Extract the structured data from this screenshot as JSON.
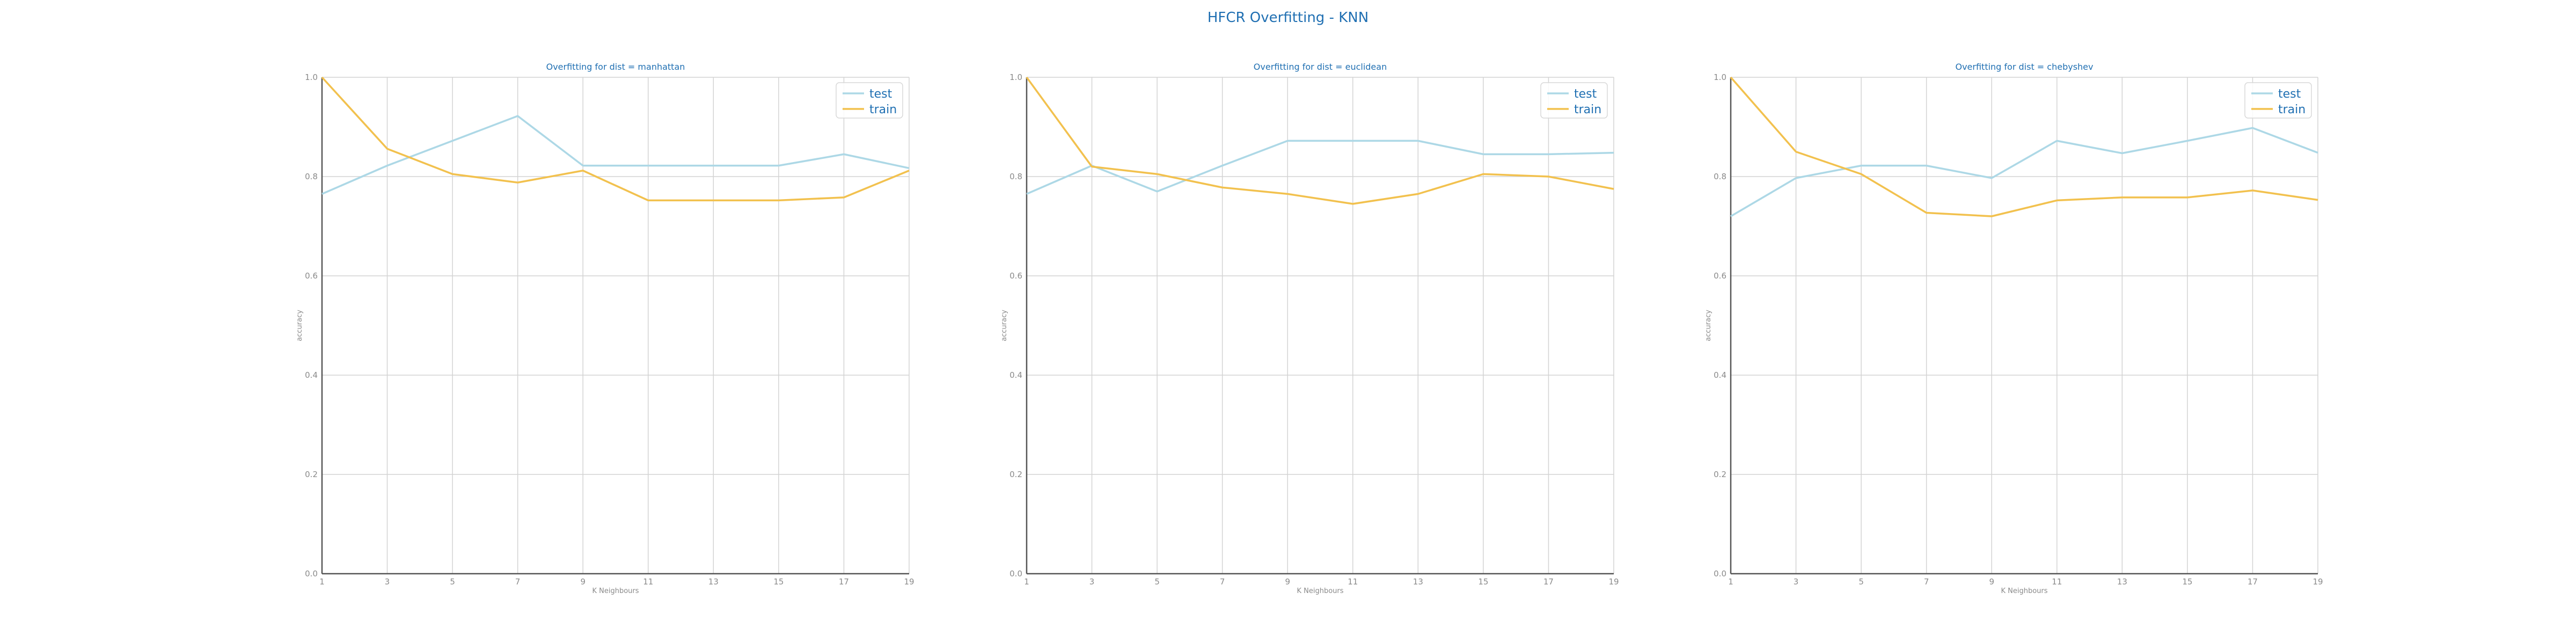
{
  "suptitle": "HFCR Overfitting - KNN",
  "colors": {
    "test": "#add8e6",
    "train": "#f2c14e",
    "title": "#1f6fb2",
    "grid": "#d3d3d3",
    "axis": "#555555",
    "tick": "#8a8a8a"
  },
  "chart_data": [
    {
      "type": "line",
      "title": "Overfitting for dist = manhattan",
      "xlabel": "K Neighbours",
      "ylabel": "accuracy",
      "x": [
        1,
        3,
        5,
        7,
        9,
        11,
        13,
        15,
        17,
        19
      ],
      "x_ticks": [
        "1",
        "3",
        "5",
        "7",
        "9",
        "11",
        "13",
        "15",
        "17",
        "19"
      ],
      "ylim": [
        0.0,
        1.0
      ],
      "y_ticks": [
        "0.0",
        "0.2",
        "0.4",
        "0.6",
        "0.8",
        "1.0"
      ],
      "grid": true,
      "legend": "top-right",
      "series": [
        {
          "name": "test",
          "values": [
            0.765,
            0.822,
            0.872,
            0.922,
            0.822,
            0.822,
            0.822,
            0.822,
            0.845,
            0.817
          ]
        },
        {
          "name": "train",
          "values": [
            1.0,
            0.856,
            0.805,
            0.788,
            0.812,
            0.752,
            0.752,
            0.752,
            0.758,
            0.812
          ]
        }
      ]
    },
    {
      "type": "line",
      "title": "Overfitting for dist = euclidean",
      "xlabel": "K Neighbours",
      "ylabel": "accuracy",
      "x": [
        1,
        3,
        5,
        7,
        9,
        11,
        13,
        15,
        17,
        19
      ],
      "x_ticks": [
        "1",
        "3",
        "5",
        "7",
        "9",
        "11",
        "13",
        "15",
        "17",
        "19"
      ],
      "ylim": [
        0.0,
        1.0
      ],
      "y_ticks": [
        "0.0",
        "0.2",
        "0.4",
        "0.6",
        "0.8",
        "1.0"
      ],
      "grid": true,
      "legend": "top-right",
      "series": [
        {
          "name": "test",
          "values": [
            0.765,
            0.822,
            0.77,
            0.822,
            0.872,
            0.872,
            0.872,
            0.845,
            0.845,
            0.848
          ]
        },
        {
          "name": "train",
          "values": [
            1.0,
            0.82,
            0.805,
            0.778,
            0.765,
            0.745,
            0.765,
            0.805,
            0.8,
            0.775
          ]
        }
      ]
    },
    {
      "type": "line",
      "title": "Overfitting for dist = chebyshev",
      "xlabel": "K Neighbours",
      "ylabel": "accuracy",
      "x": [
        1,
        3,
        5,
        7,
        9,
        11,
        13,
        15,
        17,
        19
      ],
      "x_ticks": [
        "1",
        "3",
        "5",
        "7",
        "9",
        "11",
        "13",
        "15",
        "17",
        "19"
      ],
      "ylim": [
        0.0,
        1.0
      ],
      "y_ticks": [
        "0.0",
        "0.2",
        "0.4",
        "0.6",
        "0.8",
        "1.0"
      ],
      "grid": true,
      "legend": "top-right",
      "series": [
        {
          "name": "test",
          "values": [
            0.72,
            0.797,
            0.822,
            0.822,
            0.797,
            0.872,
            0.847,
            0.872,
            0.898,
            0.848
          ]
        },
        {
          "name": "train",
          "values": [
            1.0,
            0.85,
            0.805,
            0.727,
            0.72,
            0.752,
            0.758,
            0.758,
            0.772,
            0.753
          ]
        }
      ]
    }
  ]
}
